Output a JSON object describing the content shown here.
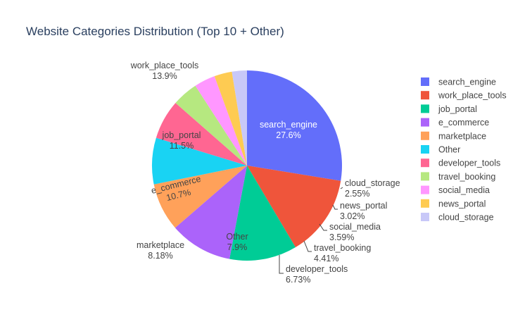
{
  "chart_data": {
    "type": "pie",
    "title": "Website Categories Distribution (Top 10 + Other)",
    "slices": [
      {
        "label": "search_engine",
        "value": 27.6,
        "value_label": "27.6%",
        "color": "#636efa"
      },
      {
        "label": "work_place_tools",
        "value": 13.9,
        "value_label": "13.9%",
        "color": "#EF553B"
      },
      {
        "label": "job_portal",
        "value": 11.5,
        "value_label": "11.5%",
        "color": "#00cc96"
      },
      {
        "label": "e_commerce",
        "value": 10.7,
        "value_label": "10.7%",
        "color": "#ab63fa"
      },
      {
        "label": "marketplace",
        "value": 8.18,
        "value_label": "8.18%",
        "color": "#FFA15A"
      },
      {
        "label": "Other",
        "value": 7.9,
        "value_label": "7.9%",
        "color": "#19d3f3"
      },
      {
        "label": "developer_tools",
        "value": 6.73,
        "value_label": "6.73%",
        "color": "#FF6692"
      },
      {
        "label": "travel_booking",
        "value": 4.41,
        "value_label": "4.41%",
        "color": "#B6E880"
      },
      {
        "label": "social_media",
        "value": 3.59,
        "value_label": "3.59%",
        "color": "#FF97FF"
      },
      {
        "label": "news_portal",
        "value": 3.02,
        "value_label": "3.02%",
        "color": "#FECB52"
      },
      {
        "label": "cloud_storage",
        "value": 2.55,
        "value_label": "2.55%",
        "color": "#c8c8f8"
      }
    ],
    "legend": {
      "position": "right"
    }
  }
}
